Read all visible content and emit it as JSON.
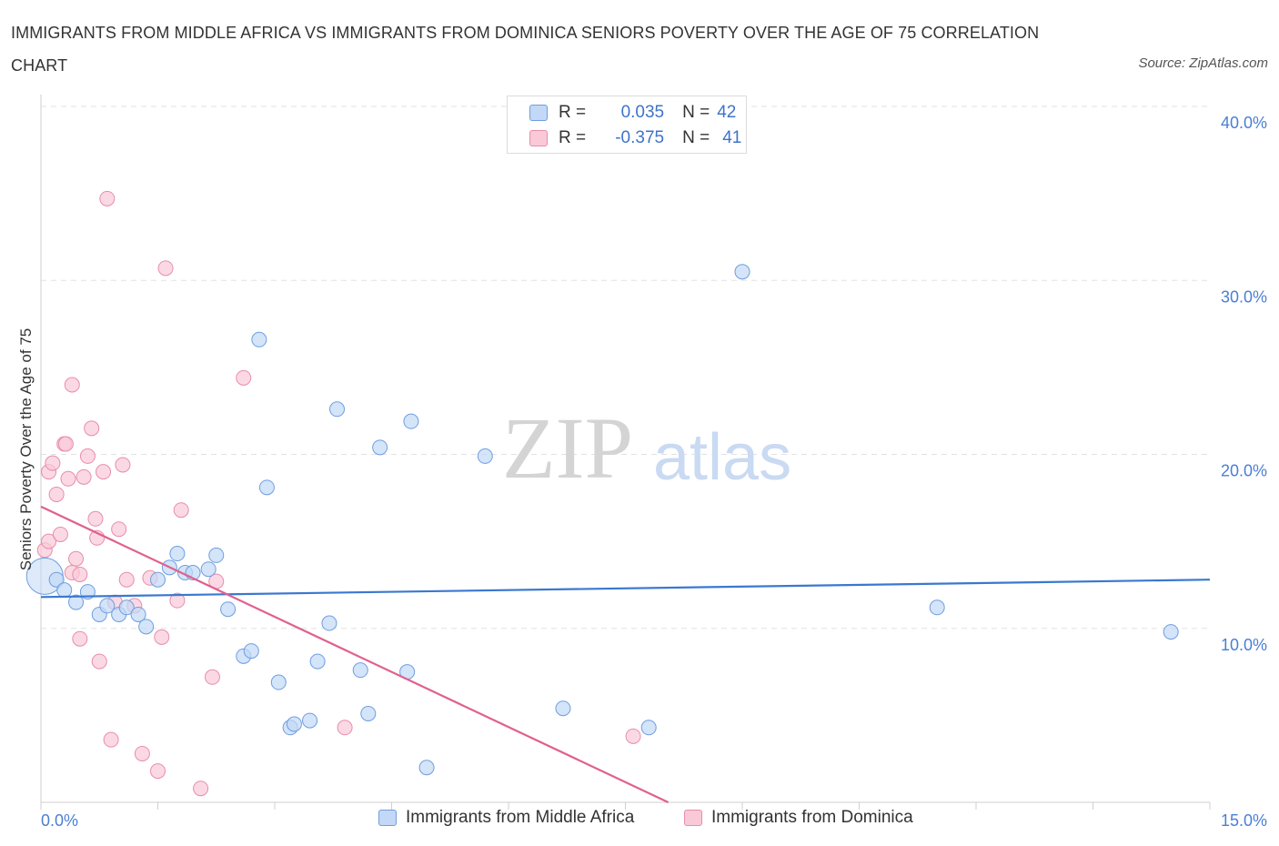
{
  "title": "IMMIGRANTS FROM MIDDLE AFRICA VS IMMIGRANTS FROM DOMINICA SENIORS POVERTY OVER THE AGE OF 75 CORRELATION CHART",
  "source": "Source: ZipAtlas.com",
  "stats": [
    {
      "r_label": "R =",
      "r_value": "0.035",
      "n_label": "N =",
      "n_value": "42"
    },
    {
      "r_label": "R =",
      "r_value": "-0.375",
      "n_label": "N =",
      "n_value": "41"
    }
  ],
  "watermark": {
    "zip": "ZIP",
    "atlas": "atlas"
  },
  "colors": {
    "blue_fill": "#c2d8f6",
    "blue_stroke": "#6f9edf",
    "blue_line": "#3a78d0",
    "pink_fill": "#f9c9d8",
    "pink_stroke": "#e88daa",
    "pink_line": "#e0608e",
    "tick_text": "#4a7fd4"
  },
  "chart_data": {
    "type": "scatter",
    "title": "IMMIGRANTS FROM MIDDLE AFRICA VS IMMIGRANTS FROM DOMINICA SENIORS POVERTY OVER THE AGE OF 75 CORRELATION CHART",
    "xlabel": "",
    "ylabel": "Seniors Poverty Over the Age of 75",
    "xlim": [
      0,
      15
    ],
    "ylim": [
      0,
      40
    ],
    "x_tick_labels": [
      "0.0%",
      "15.0%"
    ],
    "y_ticks": [
      10,
      20,
      30,
      40
    ],
    "y_tick_labels": [
      "10.0%",
      "20.0%",
      "30.0%",
      "40.0%"
    ],
    "grid": true,
    "legend_position": "bottom",
    "series": [
      {
        "name": "Immigrants from Middle Africa",
        "color": "blue",
        "r": 0.035,
        "n": 42,
        "trend": [
          [
            0.0,
            11.8
          ],
          [
            15.0,
            12.8
          ]
        ],
        "points": [
          [
            0.05,
            13.0,
            "large"
          ],
          [
            0.2,
            12.8
          ],
          [
            0.3,
            12.2
          ],
          [
            0.45,
            11.5
          ],
          [
            0.6,
            12.1
          ],
          [
            0.75,
            10.8
          ],
          [
            0.85,
            11.3
          ],
          [
            1.0,
            10.8
          ],
          [
            1.1,
            11.2
          ],
          [
            1.25,
            10.8
          ],
          [
            1.35,
            10.1
          ],
          [
            1.5,
            12.8
          ],
          [
            1.65,
            13.5
          ],
          [
            1.75,
            14.3
          ],
          [
            1.85,
            13.2
          ],
          [
            1.95,
            13.2
          ],
          [
            2.15,
            13.4
          ],
          [
            2.25,
            14.2
          ],
          [
            2.4,
            11.1
          ],
          [
            2.6,
            8.4
          ],
          [
            2.7,
            8.7
          ],
          [
            2.8,
            26.6
          ],
          [
            2.9,
            18.1
          ],
          [
            3.05,
            6.9
          ],
          [
            3.2,
            4.3
          ],
          [
            3.25,
            4.5
          ],
          [
            3.45,
            4.7
          ],
          [
            3.55,
            8.1
          ],
          [
            3.7,
            10.3
          ],
          [
            3.8,
            22.6
          ],
          [
            4.1,
            7.6
          ],
          [
            4.2,
            5.1
          ],
          [
            4.35,
            20.4
          ],
          [
            4.7,
            7.5
          ],
          [
            4.75,
            21.9
          ],
          [
            4.95,
            2.0
          ],
          [
            5.7,
            19.9
          ],
          [
            6.7,
            5.4
          ],
          [
            7.8,
            4.3
          ],
          [
            9.0,
            30.5
          ],
          [
            11.5,
            11.2
          ],
          [
            14.5,
            9.8
          ]
        ]
      },
      {
        "name": "Immigrants from Dominica",
        "color": "pink",
        "r": -0.375,
        "n": 41,
        "trend": [
          [
            0.0,
            17.0
          ],
          [
            8.05,
            0.0
          ]
        ],
        "points": [
          [
            0.05,
            14.5
          ],
          [
            0.1,
            15.0
          ],
          [
            0.1,
            19.0
          ],
          [
            0.15,
            19.5
          ],
          [
            0.2,
            17.7
          ],
          [
            0.25,
            15.4
          ],
          [
            0.3,
            20.6
          ],
          [
            0.32,
            20.6
          ],
          [
            0.35,
            18.6
          ],
          [
            0.4,
            13.2
          ],
          [
            0.4,
            24.0
          ],
          [
            0.45,
            14.0
          ],
          [
            0.5,
            13.1
          ],
          [
            0.5,
            9.4
          ],
          [
            0.55,
            18.7
          ],
          [
            0.6,
            19.9
          ],
          [
            0.65,
            21.5
          ],
          [
            0.7,
            16.3
          ],
          [
            0.72,
            15.2
          ],
          [
            0.75,
            8.1
          ],
          [
            0.8,
            19.0
          ],
          [
            0.85,
            34.7
          ],
          [
            0.9,
            3.6
          ],
          [
            0.95,
            11.5
          ],
          [
            1.0,
            15.7
          ],
          [
            1.05,
            19.4
          ],
          [
            1.1,
            12.8
          ],
          [
            1.2,
            11.3
          ],
          [
            1.3,
            2.8
          ],
          [
            1.4,
            12.9
          ],
          [
            1.5,
            1.8
          ],
          [
            1.55,
            9.5
          ],
          [
            1.6,
            30.7
          ],
          [
            1.75,
            11.6
          ],
          [
            1.8,
            16.8
          ],
          [
            2.05,
            0.8
          ],
          [
            2.2,
            7.2
          ],
          [
            2.25,
            12.7
          ],
          [
            2.6,
            24.4
          ],
          [
            3.9,
            4.3
          ],
          [
            7.6,
            3.8
          ]
        ]
      }
    ]
  }
}
